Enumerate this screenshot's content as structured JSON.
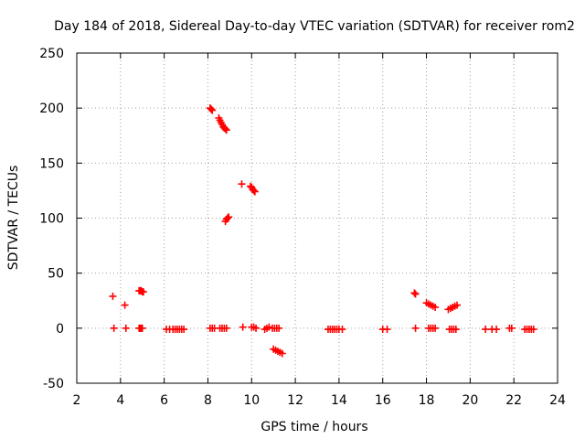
{
  "chart_data": {
    "type": "scatter",
    "title": "Day 184 of 2018, Sidereal Day-to-day VTEC variation (SDTVAR) for receiver rom2",
    "xlabel": "GPS time / hours",
    "ylabel": "SDTVAR / TECUs",
    "xlim": [
      2,
      24
    ],
    "ylim": [
      -50,
      250
    ],
    "xticks": [
      2,
      4,
      6,
      8,
      10,
      12,
      14,
      16,
      18,
      20,
      22,
      24
    ],
    "yticks": [
      -50,
      0,
      50,
      100,
      150,
      200,
      250
    ],
    "xtick_labels": [
      "2",
      "4",
      "6",
      "8",
      "10",
      "12",
      "14",
      "16",
      "18",
      "20",
      "22",
      "24"
    ],
    "ytick_labels": [
      "-50",
      "0",
      "50",
      "100",
      "150",
      "200",
      "250"
    ],
    "grid": true,
    "marker": "plus",
    "series": [
      {
        "name": "SDTVAR",
        "color": "#ff0000",
        "points": [
          [
            3.65,
            29
          ],
          [
            3.7,
            0
          ],
          [
            4.2,
            21
          ],
          [
            4.25,
            0
          ],
          [
            4.85,
            34
          ],
          [
            4.9,
            34
          ],
          [
            4.95,
            34
          ],
          [
            5.0,
            33
          ],
          [
            5.05,
            33
          ],
          [
            4.85,
            0
          ],
          [
            4.9,
            0
          ],
          [
            4.95,
            0
          ],
          [
            5.0,
            0
          ],
          [
            6.1,
            -1
          ],
          [
            6.25,
            -1
          ],
          [
            6.4,
            -1
          ],
          [
            6.5,
            -1
          ],
          [
            6.6,
            -1
          ],
          [
            6.7,
            -1
          ],
          [
            6.8,
            -1
          ],
          [
            6.9,
            -1
          ],
          [
            8.1,
            200
          ],
          [
            8.15,
            199
          ],
          [
            8.2,
            198
          ],
          [
            8.1,
            0
          ],
          [
            8.2,
            0
          ],
          [
            8.3,
            0
          ],
          [
            8.5,
            191
          ],
          [
            8.55,
            189
          ],
          [
            8.6,
            187
          ],
          [
            8.65,
            185
          ],
          [
            8.7,
            183
          ],
          [
            8.75,
            182
          ],
          [
            8.8,
            181
          ],
          [
            8.85,
            180
          ],
          [
            8.55,
            0
          ],
          [
            8.65,
            0
          ],
          [
            8.75,
            0
          ],
          [
            8.85,
            0
          ],
          [
            8.8,
            97
          ],
          [
            8.85,
            99
          ],
          [
            8.9,
            100
          ],
          [
            8.95,
            101
          ],
          [
            9.55,
            131
          ],
          [
            9.6,
            1
          ],
          [
            9.95,
            129
          ],
          [
            10.0,
            128
          ],
          [
            10.05,
            126
          ],
          [
            10.1,
            125
          ],
          [
            10.15,
            124
          ],
          [
            10.0,
            1
          ],
          [
            10.1,
            1
          ],
          [
            10.2,
            0
          ],
          [
            10.6,
            -1
          ],
          [
            10.7,
            0
          ],
          [
            10.8,
            1
          ],
          [
            10.95,
            0
          ],
          [
            11.05,
            0
          ],
          [
            11.15,
            0
          ],
          [
            11.25,
            0
          ],
          [
            11.0,
            -19
          ],
          [
            11.1,
            -20
          ],
          [
            11.2,
            -21
          ],
          [
            11.3,
            -22
          ],
          [
            11.4,
            -23
          ],
          [
            13.5,
            -1
          ],
          [
            13.6,
            -1
          ],
          [
            13.7,
            -1
          ],
          [
            13.8,
            -1
          ],
          [
            13.9,
            -1
          ],
          [
            14.0,
            -1
          ],
          [
            14.15,
            -1
          ],
          [
            16.0,
            -1
          ],
          [
            16.2,
            -1
          ],
          [
            17.45,
            32
          ],
          [
            17.5,
            31
          ],
          [
            17.5,
            0
          ],
          [
            18.0,
            23
          ],
          [
            18.1,
            22
          ],
          [
            18.2,
            21
          ],
          [
            18.3,
            20
          ],
          [
            18.4,
            19
          ],
          [
            18.1,
            0
          ],
          [
            18.2,
            0
          ],
          [
            18.3,
            0
          ],
          [
            18.4,
            0
          ],
          [
            19.0,
            17
          ],
          [
            19.1,
            18
          ],
          [
            19.2,
            19
          ],
          [
            19.3,
            20
          ],
          [
            19.4,
            21
          ],
          [
            19.05,
            -1
          ],
          [
            19.15,
            -1
          ],
          [
            19.25,
            -1
          ],
          [
            19.35,
            -1
          ],
          [
            20.7,
            -1
          ],
          [
            21.0,
            -1
          ],
          [
            21.2,
            -1
          ],
          [
            21.8,
            0
          ],
          [
            21.9,
            0
          ],
          [
            22.5,
            -1
          ],
          [
            22.6,
            -1
          ],
          [
            22.7,
            -1
          ],
          [
            22.8,
            -1
          ],
          [
            22.9,
            -1
          ]
        ]
      }
    ]
  }
}
